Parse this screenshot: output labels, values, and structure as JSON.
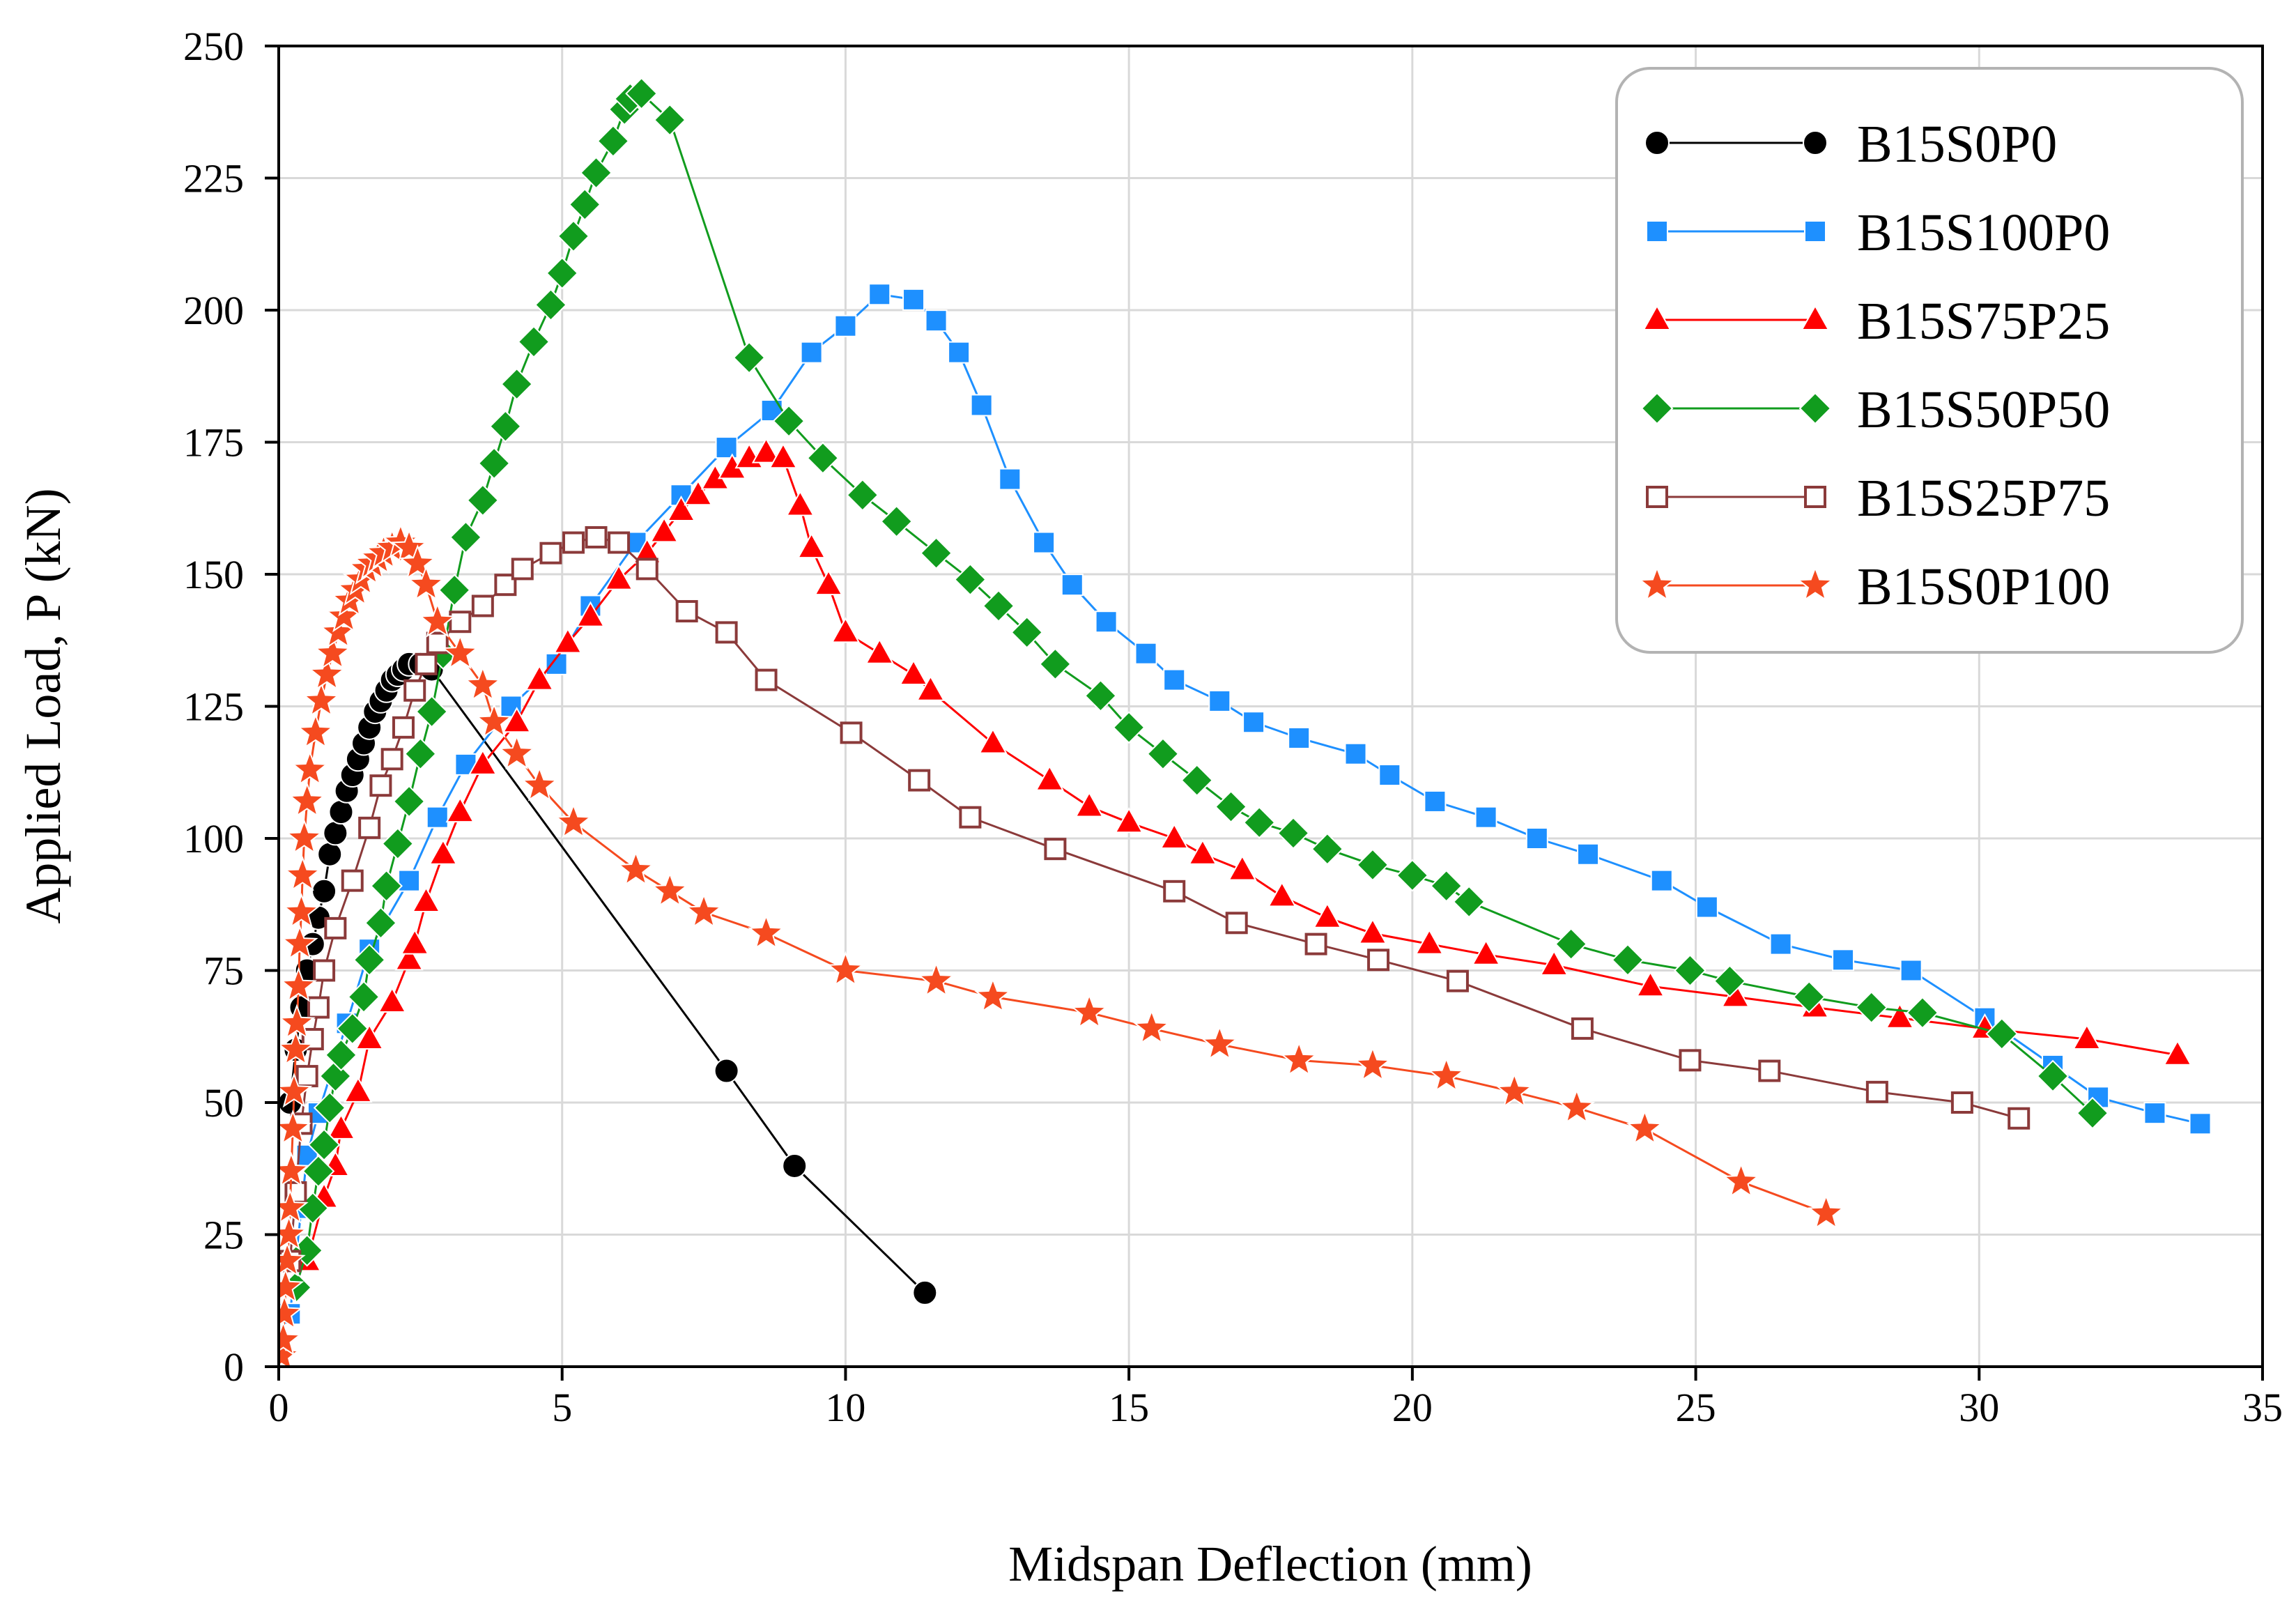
{
  "chart_data": {
    "type": "line",
    "title": "",
    "xlabel": "Midspan Deflection (mm)",
    "ylabel": "Applied Load, P (kN)",
    "xlim": [
      0,
      35
    ],
    "ylim": [
      0,
      250
    ],
    "xticks": [
      0,
      5,
      10,
      15,
      20,
      25,
      30,
      35
    ],
    "yticks": [
      0,
      25,
      50,
      75,
      100,
      125,
      150,
      175,
      200,
      225,
      250
    ],
    "grid": true,
    "legend_position": "top-right",
    "series": [
      {
        "name": "B15S0P0",
        "color": "#000000",
        "marker": "circle",
        "points": [
          [
            0.2,
            50
          ],
          [
            0.3,
            60
          ],
          [
            0.4,
            68
          ],
          [
            0.5,
            75
          ],
          [
            0.6,
            80
          ],
          [
            0.7,
            85
          ],
          [
            0.8,
            90
          ],
          [
            0.9,
            97
          ],
          [
            1.0,
            101
          ],
          [
            1.1,
            105
          ],
          [
            1.2,
            109
          ],
          [
            1.3,
            112
          ],
          [
            1.4,
            115
          ],
          [
            1.5,
            118
          ],
          [
            1.6,
            121
          ],
          [
            1.7,
            124
          ],
          [
            1.8,
            126
          ],
          [
            1.9,
            128
          ],
          [
            2.0,
            130
          ],
          [
            2.1,
            131
          ],
          [
            2.2,
            132
          ],
          [
            2.3,
            133
          ],
          [
            2.5,
            133
          ],
          [
            2.7,
            132
          ],
          [
            7.9,
            56
          ],
          [
            9.1,
            38
          ],
          [
            11.4,
            14
          ]
        ]
      },
      {
        "name": "B15S100P0",
        "color": "#1e90ff",
        "marker": "square",
        "points": [
          [
            0.2,
            10
          ],
          [
            0.3,
            20
          ],
          [
            0.4,
            30
          ],
          [
            0.5,
            40
          ],
          [
            0.7,
            48
          ],
          [
            1.2,
            65
          ],
          [
            1.6,
            79
          ],
          [
            2.3,
            92
          ],
          [
            2.8,
            104
          ],
          [
            3.3,
            114
          ],
          [
            4.1,
            125
          ],
          [
            4.9,
            133
          ],
          [
            5.5,
            144
          ],
          [
            6.3,
            156
          ],
          [
            7.1,
            165
          ],
          [
            7.9,
            174
          ],
          [
            8.7,
            181
          ],
          [
            9.4,
            192
          ],
          [
            10.0,
            197
          ],
          [
            10.6,
            203
          ],
          [
            11.2,
            202
          ],
          [
            11.6,
            198
          ],
          [
            12.0,
            192
          ],
          [
            12.4,
            182
          ],
          [
            12.9,
            168
          ],
          [
            13.5,
            156
          ],
          [
            14.0,
            148
          ],
          [
            14.6,
            141
          ],
          [
            15.3,
            135
          ],
          [
            15.8,
            130
          ],
          [
            16.6,
            126
          ],
          [
            17.2,
            122
          ],
          [
            18.0,
            119
          ],
          [
            19.0,
            116
          ],
          [
            19.6,
            112
          ],
          [
            20.4,
            107
          ],
          [
            21.3,
            104
          ],
          [
            22.2,
            100
          ],
          [
            23.1,
            97
          ],
          [
            24.4,
            92
          ],
          [
            25.2,
            87
          ],
          [
            26.5,
            80
          ],
          [
            27.6,
            77
          ],
          [
            28.8,
            75
          ],
          [
            30.1,
            66
          ],
          [
            31.3,
            57
          ],
          [
            32.1,
            51
          ],
          [
            33.1,
            48
          ],
          [
            33.9,
            46
          ]
        ]
      },
      {
        "name": "B15S75P25",
        "color": "#ff0000",
        "marker": "triangle",
        "points": [
          [
            0.5,
            20
          ],
          [
            0.8,
            32
          ],
          [
            1.0,
            38
          ],
          [
            1.1,
            45
          ],
          [
            1.4,
            52
          ],
          [
            1.6,
            62
          ],
          [
            2.0,
            69
          ],
          [
            2.3,
            77
          ],
          [
            2.4,
            80
          ],
          [
            2.6,
            88
          ],
          [
            2.9,
            97
          ],
          [
            3.2,
            105
          ],
          [
            3.6,
            114
          ],
          [
            4.2,
            122
          ],
          [
            4.6,
            130
          ],
          [
            5.1,
            137
          ],
          [
            5.5,
            142
          ],
          [
            6.0,
            149
          ],
          [
            6.5,
            154
          ],
          [
            6.8,
            158
          ],
          [
            7.1,
            162
          ],
          [
            7.4,
            165
          ],
          [
            7.7,
            168
          ],
          [
            8.0,
            170
          ],
          [
            8.3,
            172
          ],
          [
            8.6,
            173
          ],
          [
            8.9,
            172
          ],
          [
            9.2,
            163
          ],
          [
            9.4,
            155
          ],
          [
            9.7,
            148
          ],
          [
            10.0,
            139
          ],
          [
            10.6,
            135
          ],
          [
            11.2,
            131
          ],
          [
            11.5,
            128
          ],
          [
            12.6,
            118
          ],
          [
            13.6,
            111
          ],
          [
            14.3,
            106
          ],
          [
            15.0,
            103
          ],
          [
            15.8,
            100
          ],
          [
            16.3,
            97
          ],
          [
            17.0,
            94
          ],
          [
            17.7,
            89
          ],
          [
            18.5,
            85
          ],
          [
            19.3,
            82
          ],
          [
            20.3,
            80
          ],
          [
            21.3,
            78
          ],
          [
            22.5,
            76
          ],
          [
            24.2,
            72
          ],
          [
            25.7,
            70
          ],
          [
            27.1,
            68
          ],
          [
            28.6,
            66
          ],
          [
            30.1,
            64
          ],
          [
            31.9,
            62
          ],
          [
            33.5,
            59
          ]
        ]
      },
      {
        "name": "B15S50P50",
        "color": "#119c1e",
        "marker": "diamond",
        "points": [
          [
            0.3,
            15
          ],
          [
            0.5,
            22
          ],
          [
            0.6,
            30
          ],
          [
            0.7,
            37
          ],
          [
            0.8,
            42
          ],
          [
            0.9,
            49
          ],
          [
            1.0,
            55
          ],
          [
            1.1,
            59
          ],
          [
            1.3,
            64
          ],
          [
            1.5,
            70
          ],
          [
            1.6,
            77
          ],
          [
            1.8,
            84
          ],
          [
            1.9,
            91
          ],
          [
            2.1,
            99
          ],
          [
            2.3,
            107
          ],
          [
            2.5,
            116
          ],
          [
            2.7,
            124
          ],
          [
            2.9,
            135
          ],
          [
            3.1,
            147
          ],
          [
            3.3,
            157
          ],
          [
            3.6,
            164
          ],
          [
            3.8,
            171
          ],
          [
            4.0,
            178
          ],
          [
            4.2,
            186
          ],
          [
            4.5,
            194
          ],
          [
            4.8,
            201
          ],
          [
            5.0,
            207
          ],
          [
            5.2,
            214
          ],
          [
            5.4,
            220
          ],
          [
            5.6,
            226
          ],
          [
            5.9,
            232
          ],
          [
            6.1,
            238
          ],
          [
            6.2,
            240
          ],
          [
            6.4,
            241
          ],
          [
            6.9,
            236
          ],
          [
            8.3,
            191
          ],
          [
            9.0,
            179
          ],
          [
            9.6,
            172
          ],
          [
            10.3,
            165
          ],
          [
            10.9,
            160
          ],
          [
            11.6,
            154
          ],
          [
            12.2,
            149
          ],
          [
            12.7,
            144
          ],
          [
            13.2,
            139
          ],
          [
            13.7,
            133
          ],
          [
            14.5,
            127
          ],
          [
            15.0,
            121
          ],
          [
            15.6,
            116
          ],
          [
            16.2,
            111
          ],
          [
            16.8,
            106
          ],
          [
            17.3,
            103
          ],
          [
            17.9,
            101
          ],
          [
            18.5,
            98
          ],
          [
            19.3,
            95
          ],
          [
            20.0,
            93
          ],
          [
            20.6,
            91
          ],
          [
            21.0,
            88
          ],
          [
            22.8,
            80
          ],
          [
            23.8,
            77
          ],
          [
            24.9,
            75
          ],
          [
            25.6,
            73
          ],
          [
            27.0,
            70
          ],
          [
            28.1,
            68
          ],
          [
            29.0,
            67
          ],
          [
            30.4,
            63
          ],
          [
            31.3,
            55
          ],
          [
            32.0,
            48
          ]
        ]
      },
      {
        "name": "B15S25P75",
        "color": "#8b3a3a",
        "marker": "square-open",
        "points": [
          [
            0.2,
            20
          ],
          [
            0.3,
            33
          ],
          [
            0.4,
            46
          ],
          [
            0.5,
            55
          ],
          [
            0.6,
            62
          ],
          [
            0.7,
            68
          ],
          [
            0.8,
            75
          ],
          [
            1.0,
            83
          ],
          [
            1.3,
            92
          ],
          [
            1.6,
            102
          ],
          [
            1.8,
            110
          ],
          [
            2.0,
            115
          ],
          [
            2.2,
            121
          ],
          [
            2.4,
            128
          ],
          [
            2.6,
            133
          ],
          [
            2.8,
            137
          ],
          [
            3.2,
            141
          ],
          [
            3.6,
            144
          ],
          [
            4.0,
            148
          ],
          [
            4.3,
            151
          ],
          [
            4.8,
            154
          ],
          [
            5.2,
            156
          ],
          [
            5.6,
            157
          ],
          [
            6.0,
            156
          ],
          [
            6.5,
            151
          ],
          [
            7.2,
            143
          ],
          [
            7.9,
            139
          ],
          [
            8.6,
            130
          ],
          [
            10.1,
            120
          ],
          [
            11.3,
            111
          ],
          [
            12.2,
            104
          ],
          [
            13.7,
            98
          ],
          [
            15.8,
            90
          ],
          [
            16.9,
            84
          ],
          [
            18.3,
            80
          ],
          [
            19.4,
            77
          ],
          [
            20.8,
            73
          ],
          [
            23.0,
            64
          ],
          [
            24.9,
            58
          ],
          [
            26.3,
            56
          ],
          [
            28.2,
            52
          ],
          [
            29.7,
            50
          ],
          [
            30.7,
            47
          ]
        ]
      },
      {
        "name": "B15S0P100",
        "color": "#f54a1f",
        "marker": "star",
        "points": [
          [
            0.05,
            2
          ],
          [
            0.08,
            5
          ],
          [
            0.1,
            10
          ],
          [
            0.12,
            15
          ],
          [
            0.15,
            20
          ],
          [
            0.18,
            25
          ],
          [
            0.2,
            30
          ],
          [
            0.22,
            37
          ],
          [
            0.25,
            45
          ],
          [
            0.27,
            52
          ],
          [
            0.3,
            60
          ],
          [
            0.32,
            65
          ],
          [
            0.35,
            72
          ],
          [
            0.37,
            80
          ],
          [
            0.4,
            86
          ],
          [
            0.42,
            93
          ],
          [
            0.45,
            100
          ],
          [
            0.5,
            107
          ],
          [
            0.55,
            113
          ],
          [
            0.65,
            120
          ],
          [
            0.75,
            126
          ],
          [
            0.85,
            131
          ],
          [
            0.95,
            135
          ],
          [
            1.05,
            139
          ],
          [
            1.15,
            142
          ],
          [
            1.25,
            145
          ],
          [
            1.35,
            147
          ],
          [
            1.45,
            149
          ],
          [
            1.55,
            151
          ],
          [
            1.65,
            152
          ],
          [
            1.75,
            153
          ],
          [
            1.85,
            154
          ],
          [
            2.0,
            155
          ],
          [
            2.15,
            156
          ],
          [
            2.3,
            155
          ],
          [
            2.45,
            152
          ],
          [
            2.6,
            148
          ],
          [
            2.8,
            141
          ],
          [
            3.2,
            135
          ],
          [
            3.6,
            129
          ],
          [
            3.8,
            122
          ],
          [
            4.2,
            116
          ],
          [
            4.6,
            110
          ],
          [
            5.2,
            103
          ],
          [
            6.3,
            94
          ],
          [
            6.9,
            90
          ],
          [
            7.5,
            86
          ],
          [
            8.6,
            82
          ],
          [
            10.0,
            75
          ],
          [
            11.6,
            73
          ],
          [
            12.6,
            70
          ],
          [
            14.3,
            67
          ],
          [
            15.4,
            64
          ],
          [
            16.6,
            61
          ],
          [
            18.0,
            58
          ],
          [
            19.3,
            57
          ],
          [
            20.6,
            55
          ],
          [
            21.8,
            52
          ],
          [
            22.9,
            49
          ],
          [
            24.1,
            45
          ],
          [
            25.8,
            35
          ],
          [
            27.3,
            29
          ]
        ]
      }
    ]
  }
}
